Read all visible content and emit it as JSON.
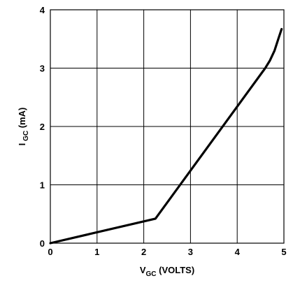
{
  "chart_data": {
    "type": "line",
    "xlabel": {
      "main": "V",
      "sub": "GC",
      "rest": " (VOLTS)"
    },
    "ylabel": {
      "main": "I",
      "sub": " GC",
      "rest": " (mA)"
    },
    "xlim": [
      0,
      5
    ],
    "ylim": [
      0,
      4
    ],
    "x_ticks": [
      "0",
      "1",
      "2",
      "3",
      "4",
      "5"
    ],
    "y_ticks": [
      "0",
      "1",
      "2",
      "3",
      "4"
    ],
    "grid": true,
    "series": [
      {
        "color": "#000000",
        "x": [
          0,
          2.25,
          4.6,
          4.7,
          4.8,
          4.88,
          4.95
        ],
        "y": [
          0,
          0.42,
          3.0,
          3.13,
          3.3,
          3.5,
          3.67
        ]
      }
    ]
  }
}
